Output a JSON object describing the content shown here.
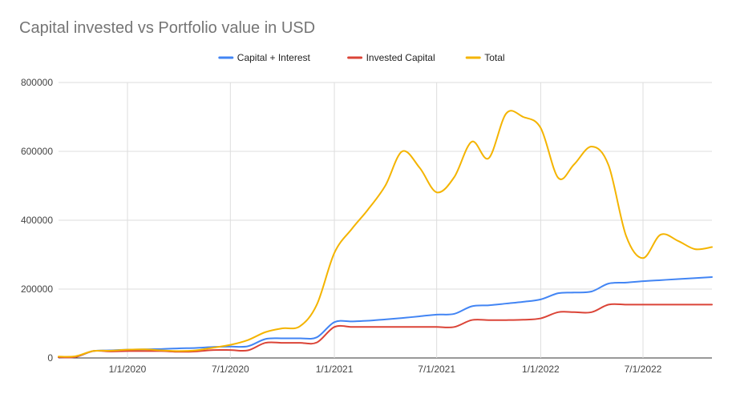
{
  "chart_data": {
    "type": "line",
    "title": "Capital invested vs Portfolio value in USD",
    "xlabel": "",
    "ylabel": "",
    "x_range": [
      "2019-09-01",
      "2022-10-31"
    ],
    "ylim": [
      0,
      800000
    ],
    "y_ticks": [
      0,
      200000,
      400000,
      600000,
      800000
    ],
    "y_tick_labels": [
      "0",
      "200000",
      "400000",
      "600000",
      "800000"
    ],
    "x_ticks": [
      "2020-01-01",
      "2020-07-01",
      "2021-01-01",
      "2021-07-01",
      "2022-01-01",
      "2022-07-01"
    ],
    "x_tick_labels": [
      "1/1/2020",
      "7/1/2020",
      "1/1/2021",
      "7/1/2021",
      "1/1/2022",
      "7/1/2022"
    ],
    "grid": true,
    "legend_position": "top",
    "series": [
      {
        "name": "Capital + Interest",
        "color": "#4285F4",
        "points": [
          [
            "2019-09-01",
            2000
          ],
          [
            "2019-10-01",
            3000
          ],
          [
            "2019-11-01",
            20000
          ],
          [
            "2019-12-01",
            22000
          ],
          [
            "2020-01-01",
            24000
          ],
          [
            "2020-02-01",
            25000
          ],
          [
            "2020-03-01",
            26000
          ],
          [
            "2020-04-01",
            28000
          ],
          [
            "2020-05-01",
            29000
          ],
          [
            "2020-06-01",
            32000
          ],
          [
            "2020-07-01",
            33000
          ],
          [
            "2020-08-01",
            34000
          ],
          [
            "2020-09-01",
            55000
          ],
          [
            "2020-10-01",
            57000
          ],
          [
            "2020-11-01",
            57000
          ],
          [
            "2020-12-01",
            60000
          ],
          [
            "2021-01-01",
            104000
          ],
          [
            "2021-02-01",
            106000
          ],
          [
            "2021-03-01",
            108000
          ],
          [
            "2021-04-01",
            112000
          ],
          [
            "2021-05-01",
            116000
          ],
          [
            "2021-06-01",
            121000
          ],
          [
            "2021-07-01",
            126000
          ],
          [
            "2021-08-01",
            128000
          ],
          [
            "2021-09-01",
            150000
          ],
          [
            "2021-10-01",
            153000
          ],
          [
            "2021-11-01",
            158000
          ],
          [
            "2021-12-01",
            163000
          ],
          [
            "2022-01-01",
            170000
          ],
          [
            "2022-02-01",
            188000
          ],
          [
            "2022-03-01",
            190000
          ],
          [
            "2022-04-01",
            193000
          ],
          [
            "2022-05-01",
            216000
          ],
          [
            "2022-06-01",
            219000
          ],
          [
            "2022-07-01",
            223000
          ],
          [
            "2022-08-01",
            226000
          ],
          [
            "2022-09-01",
            229000
          ],
          [
            "2022-10-31",
            235000
          ]
        ]
      },
      {
        "name": "Invested Capital",
        "color": "#DB4437",
        "points": [
          [
            "2019-09-01",
            2000
          ],
          [
            "2019-10-01",
            3000
          ],
          [
            "2019-11-01",
            20000
          ],
          [
            "2019-12-01",
            19000
          ],
          [
            "2020-01-01",
            20000
          ],
          [
            "2020-02-01",
            20000
          ],
          [
            "2020-03-01",
            20000
          ],
          [
            "2020-04-01",
            18000
          ],
          [
            "2020-05-01",
            19000
          ],
          [
            "2020-06-01",
            23000
          ],
          [
            "2020-07-01",
            23000
          ],
          [
            "2020-08-01",
            22000
          ],
          [
            "2020-09-01",
            44000
          ],
          [
            "2020-10-01",
            44000
          ],
          [
            "2020-11-01",
            44000
          ],
          [
            "2020-12-01",
            45000
          ],
          [
            "2021-01-01",
            90000
          ],
          [
            "2021-02-01",
            90000
          ],
          [
            "2021-03-01",
            90000
          ],
          [
            "2021-04-01",
            90000
          ],
          [
            "2021-05-01",
            90000
          ],
          [
            "2021-06-01",
            90000
          ],
          [
            "2021-07-01",
            90000
          ],
          [
            "2021-08-01",
            90000
          ],
          [
            "2021-09-01",
            110000
          ],
          [
            "2021-10-01",
            110000
          ],
          [
            "2021-11-01",
            110000
          ],
          [
            "2021-12-01",
            111000
          ],
          [
            "2022-01-01",
            115000
          ],
          [
            "2022-02-01",
            133000
          ],
          [
            "2022-03-01",
            133000
          ],
          [
            "2022-04-01",
            133000
          ],
          [
            "2022-05-01",
            155000
          ],
          [
            "2022-06-01",
            155000
          ],
          [
            "2022-07-01",
            155000
          ],
          [
            "2022-08-01",
            155000
          ],
          [
            "2022-09-01",
            155000
          ],
          [
            "2022-10-31",
            155000
          ]
        ]
      },
      {
        "name": "Total",
        "color": "#F4B400",
        "points": [
          [
            "2019-09-01",
            4000
          ],
          [
            "2019-10-01",
            5000
          ],
          [
            "2019-11-01",
            20000
          ],
          [
            "2019-12-01",
            21000
          ],
          [
            "2020-01-01",
            24000
          ],
          [
            "2020-02-01",
            25000
          ],
          [
            "2020-03-01",
            22000
          ],
          [
            "2020-04-01",
            20000
          ],
          [
            "2020-05-01",
            22000
          ],
          [
            "2020-06-01",
            30000
          ],
          [
            "2020-07-01",
            38000
          ],
          [
            "2020-08-01",
            52000
          ],
          [
            "2020-09-01",
            75000
          ],
          [
            "2020-10-01",
            86000
          ],
          [
            "2020-11-01",
            92000
          ],
          [
            "2020-12-01",
            155000
          ],
          [
            "2021-01-01",
            305000
          ],
          [
            "2021-02-01",
            375000
          ],
          [
            "2021-03-01",
            430000
          ],
          [
            "2021-04-01",
            500000
          ],
          [
            "2021-05-01",
            600000
          ],
          [
            "2021-06-01",
            552000
          ],
          [
            "2021-07-01",
            481000
          ],
          [
            "2021-08-01",
            525000
          ],
          [
            "2021-09-01",
            628000
          ],
          [
            "2021-10-01",
            580000
          ],
          [
            "2021-11-01",
            710000
          ],
          [
            "2021-12-01",
            700000
          ],
          [
            "2022-01-01",
            668000
          ],
          [
            "2022-02-01",
            523000
          ],
          [
            "2022-03-01",
            562000
          ],
          [
            "2022-04-01",
            614000
          ],
          [
            "2022-05-01",
            560000
          ],
          [
            "2022-06-01",
            355000
          ],
          [
            "2022-07-01",
            290000
          ],
          [
            "2022-08-01",
            358000
          ],
          [
            "2022-09-01",
            340000
          ],
          [
            "2022-10-01",
            316000
          ],
          [
            "2022-10-31",
            322000
          ]
        ]
      }
    ]
  }
}
